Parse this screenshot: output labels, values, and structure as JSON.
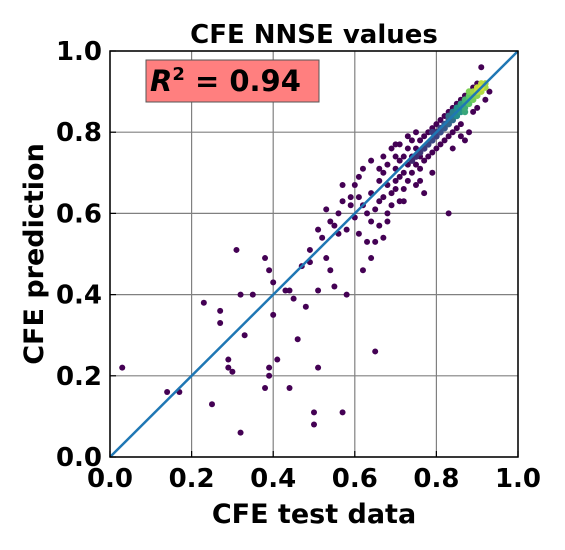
{
  "chart_data": {
    "type": "scatter",
    "title": "CFE NNSE values",
    "xlabel": "CFE test data",
    "ylabel": "CFE prediction",
    "xlim": [
      0.0,
      1.0
    ],
    "ylim": [
      0.0,
      1.0
    ],
    "xticks": [
      "0.0",
      "0.2",
      "0.4",
      "0.6",
      "0.8",
      "1.0"
    ],
    "yticks": [
      "0.0",
      "0.2",
      "0.4",
      "0.6",
      "0.8",
      "1.0"
    ],
    "grid": true,
    "annotation": {
      "symbol": "R",
      "superscript": "2",
      "text": " = 0.94",
      "box_color": "#ff7f7f"
    },
    "reference_line": {
      "x": [
        0,
        1
      ],
      "y": [
        0,
        1
      ],
      "color": "#1f77b4"
    },
    "colormap": [
      "#440154",
      "#3b528b",
      "#21918c",
      "#5ec962",
      "#fde725"
    ],
    "point_color": "#440154",
    "points": [
      [
        0.03,
        0.22
      ],
      [
        0.14,
        0.16
      ],
      [
        0.17,
        0.16
      ],
      [
        0.23,
        0.38
      ],
      [
        0.25,
        0.13
      ],
      [
        0.27,
        0.36
      ],
      [
        0.27,
        0.33
      ],
      [
        0.29,
        0.24
      ],
      [
        0.29,
        0.22
      ],
      [
        0.3,
        0.21
      ],
      [
        0.31,
        0.51
      ],
      [
        0.32,
        0.06
      ],
      [
        0.32,
        0.4
      ],
      [
        0.33,
        0.3
      ],
      [
        0.35,
        0.4
      ],
      [
        0.38,
        0.17
      ],
      [
        0.38,
        0.49
      ],
      [
        0.39,
        0.2
      ],
      [
        0.39,
        0.22
      ],
      [
        0.39,
        0.46
      ],
      [
        0.4,
        0.43
      ],
      [
        0.4,
        0.35
      ],
      [
        0.41,
        0.24
      ],
      [
        0.43,
        0.41
      ],
      [
        0.44,
        0.17
      ],
      [
        0.44,
        0.41
      ],
      [
        0.45,
        0.39
      ],
      [
        0.46,
        0.29
      ],
      [
        0.47,
        0.47
      ],
      [
        0.48,
        0.37
      ],
      [
        0.49,
        0.48
      ],
      [
        0.49,
        0.51
      ],
      [
        0.5,
        0.11
      ],
      [
        0.5,
        0.08
      ],
      [
        0.51,
        0.22
      ],
      [
        0.51,
        0.41
      ],
      [
        0.51,
        0.56
      ],
      [
        0.52,
        0.54
      ],
      [
        0.53,
        0.61
      ],
      [
        0.53,
        0.49
      ],
      [
        0.54,
        0.46
      ],
      [
        0.54,
        0.58
      ],
      [
        0.55,
        0.42
      ],
      [
        0.55,
        0.57
      ],
      [
        0.56,
        0.55
      ],
      [
        0.56,
        0.6
      ],
      [
        0.57,
        0.11
      ],
      [
        0.57,
        0.67
      ],
      [
        0.58,
        0.4
      ],
      [
        0.58,
        0.56
      ],
      [
        0.59,
        0.62
      ],
      [
        0.59,
        0.64
      ],
      [
        0.6,
        0.59
      ],
      [
        0.61,
        0.55
      ],
      [
        0.61,
        0.64
      ],
      [
        0.61,
        0.69
      ],
      [
        0.62,
        0.46
      ],
      [
        0.62,
        0.62
      ],
      [
        0.63,
        0.53
      ],
      [
        0.63,
        0.6
      ],
      [
        0.64,
        0.49
      ],
      [
        0.64,
        0.58
      ],
      [
        0.64,
        0.65
      ],
      [
        0.64,
        0.73
      ],
      [
        0.65,
        0.26
      ],
      [
        0.65,
        0.61
      ],
      [
        0.65,
        0.53
      ],
      [
        0.66,
        0.63
      ],
      [
        0.66,
        0.57
      ],
      [
        0.66,
        0.68
      ],
      [
        0.67,
        0.64
      ],
      [
        0.67,
        0.7
      ],
      [
        0.67,
        0.74
      ],
      [
        0.67,
        0.54
      ],
      [
        0.68,
        0.6
      ],
      [
        0.68,
        0.67
      ],
      [
        0.68,
        0.72
      ],
      [
        0.69,
        0.65
      ],
      [
        0.69,
        0.76
      ],
      [
        0.69,
        0.62
      ],
      [
        0.7,
        0.68
      ],
      [
        0.7,
        0.71
      ],
      [
        0.7,
        0.74
      ],
      [
        0.7,
        0.66
      ],
      [
        0.71,
        0.69
      ],
      [
        0.71,
        0.73
      ],
      [
        0.71,
        0.77
      ],
      [
        0.71,
        0.63
      ],
      [
        0.72,
        0.7
      ],
      [
        0.72,
        0.74
      ],
      [
        0.72,
        0.66
      ],
      [
        0.73,
        0.72
      ],
      [
        0.73,
        0.76
      ],
      [
        0.73,
        0.79
      ],
      [
        0.73,
        0.68
      ],
      [
        0.74,
        0.74
      ],
      [
        0.74,
        0.7
      ],
      [
        0.74,
        0.78
      ],
      [
        0.75,
        0.72
      ],
      [
        0.75,
        0.76
      ],
      [
        0.75,
        0.8
      ],
      [
        0.75,
        0.67
      ],
      [
        0.76,
        0.74
      ],
      [
        0.76,
        0.78
      ],
      [
        0.76,
        0.71
      ],
      [
        0.77,
        0.76
      ],
      [
        0.77,
        0.79
      ],
      [
        0.77,
        0.73
      ],
      [
        0.78,
        0.77
      ],
      [
        0.78,
        0.8
      ],
      [
        0.78,
        0.74
      ],
      [
        0.79,
        0.78
      ],
      [
        0.79,
        0.81
      ],
      [
        0.79,
        0.75
      ],
      [
        0.8,
        0.79
      ],
      [
        0.8,
        0.82
      ],
      [
        0.8,
        0.76
      ],
      [
        0.81,
        0.8
      ],
      [
        0.81,
        0.83
      ],
      [
        0.81,
        0.77
      ],
      [
        0.82,
        0.81
      ],
      [
        0.82,
        0.84
      ],
      [
        0.82,
        0.78
      ],
      [
        0.83,
        0.82
      ],
      [
        0.83,
        0.85
      ],
      [
        0.83,
        0.6
      ],
      [
        0.83,
        0.79
      ],
      [
        0.84,
        0.83
      ],
      [
        0.84,
        0.86
      ],
      [
        0.84,
        0.8
      ],
      [
        0.85,
        0.84
      ],
      [
        0.85,
        0.87
      ],
      [
        0.85,
        0.81
      ],
      [
        0.86,
        0.85
      ],
      [
        0.86,
        0.88
      ],
      [
        0.86,
        0.82
      ],
      [
        0.87,
        0.86
      ],
      [
        0.87,
        0.89
      ],
      [
        0.87,
        0.78
      ],
      [
        0.88,
        0.87
      ],
      [
        0.88,
        0.9
      ],
      [
        0.88,
        0.8
      ],
      [
        0.89,
        0.88
      ],
      [
        0.89,
        0.91
      ],
      [
        0.89,
        0.85
      ],
      [
        0.9,
        0.89
      ],
      [
        0.9,
        0.92
      ],
      [
        0.9,
        0.86
      ],
      [
        0.91,
        0.9
      ],
      [
        0.91,
        0.96
      ],
      [
        0.92,
        0.91
      ],
      [
        0.92,
        0.88
      ],
      [
        0.93,
        0.9
      ],
      [
        0.84,
        0.76
      ],
      [
        0.86,
        0.79
      ],
      [
        0.76,
        0.68
      ],
      [
        0.77,
        0.65
      ],
      [
        0.72,
        0.63
      ],
      [
        0.79,
        0.7
      ],
      [
        0.7,
        0.77
      ],
      [
        0.68,
        0.58
      ],
      [
        0.66,
        0.71
      ],
      [
        0.62,
        0.71
      ],
      [
        0.6,
        0.67
      ],
      [
        0.57,
        0.63
      ]
    ],
    "density_points": [
      [
        0.8,
        0.8,
        0.15
      ],
      [
        0.81,
        0.81,
        0.2
      ],
      [
        0.82,
        0.82,
        0.25
      ],
      [
        0.83,
        0.83,
        0.3
      ],
      [
        0.84,
        0.83,
        0.35
      ],
      [
        0.84,
        0.84,
        0.4
      ],
      [
        0.85,
        0.85,
        0.45
      ],
      [
        0.86,
        0.86,
        0.5
      ],
      [
        0.86,
        0.87,
        0.55
      ],
      [
        0.87,
        0.87,
        0.6
      ],
      [
        0.87,
        0.88,
        0.65
      ],
      [
        0.88,
        0.88,
        0.7
      ],
      [
        0.88,
        0.89,
        0.75
      ],
      [
        0.89,
        0.89,
        0.8
      ],
      [
        0.89,
        0.9,
        0.85
      ],
      [
        0.9,
        0.9,
        0.9
      ],
      [
        0.9,
        0.91,
        0.92
      ],
      [
        0.91,
        0.91,
        0.95
      ],
      [
        0.91,
        0.92,
        0.9
      ],
      [
        0.92,
        0.92,
        0.85
      ],
      [
        0.88,
        0.87,
        0.72
      ],
      [
        0.87,
        0.86,
        0.62
      ],
      [
        0.85,
        0.84,
        0.48
      ],
      [
        0.83,
        0.82,
        0.32
      ],
      [
        0.82,
        0.81,
        0.28
      ],
      [
        0.79,
        0.78,
        0.22
      ],
      [
        0.78,
        0.77,
        0.2
      ],
      [
        0.77,
        0.76,
        0.18
      ],
      [
        0.76,
        0.75,
        0.16
      ],
      [
        0.75,
        0.74,
        0.14
      ],
      [
        0.74,
        0.73,
        0.12
      ],
      [
        0.89,
        0.88,
        0.78
      ],
      [
        0.9,
        0.89,
        0.82
      ],
      [
        0.86,
        0.85,
        0.52
      ],
      [
        0.85,
        0.86,
        0.5
      ],
      [
        0.84,
        0.85,
        0.42
      ],
      [
        0.88,
        0.9,
        0.8
      ],
      [
        0.91,
        0.9,
        0.88
      ],
      [
        0.92,
        0.91,
        0.86
      ],
      [
        0.8,
        0.79,
        0.2
      ],
      [
        0.81,
        0.8,
        0.24
      ],
      [
        0.79,
        0.8,
        0.18
      ],
      [
        0.83,
        0.84,
        0.36
      ],
      [
        0.87,
        0.85,
        0.6
      ]
    ]
  }
}
